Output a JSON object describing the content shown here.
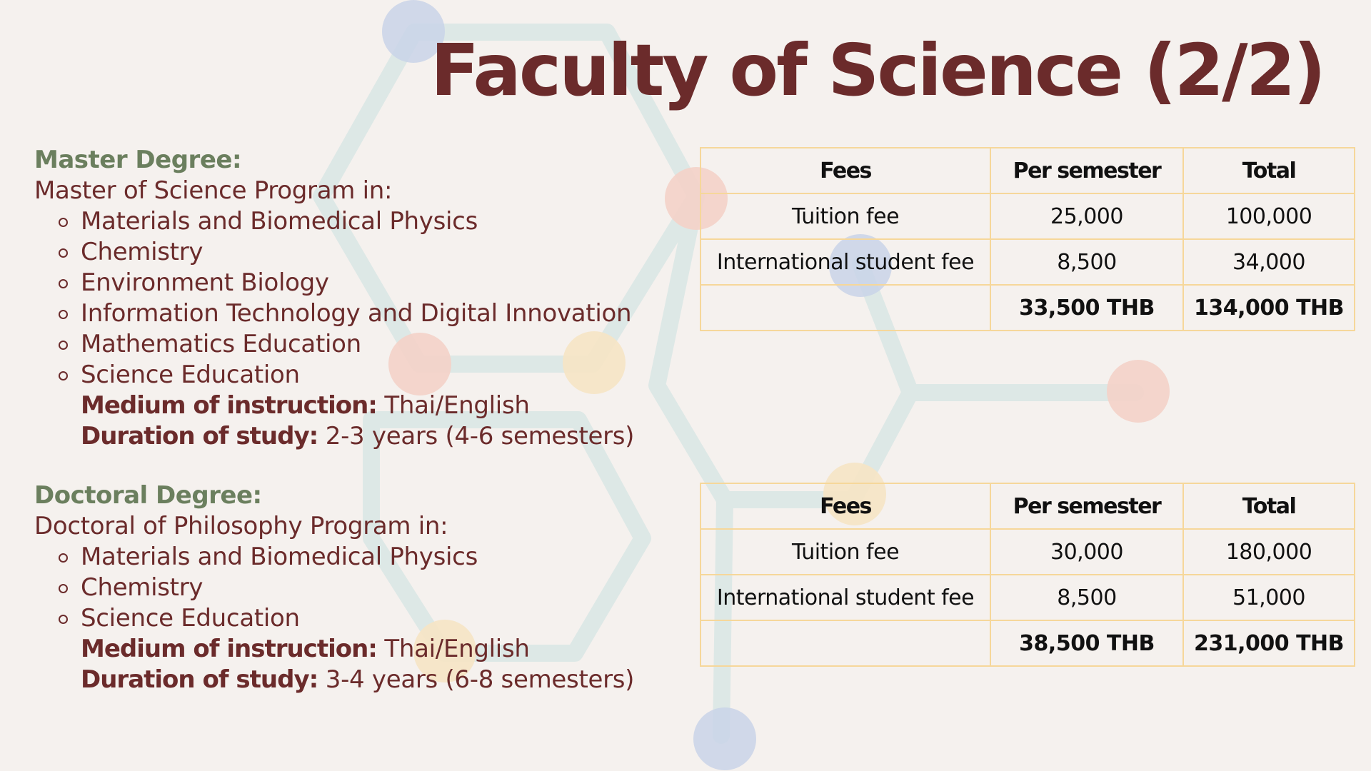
{
  "title": "Faculty of Science (2/2)",
  "master": {
    "heading": "Master Degree:",
    "intro": "Master of Science Program in:",
    "programs": [
      "Materials and Biomedical Physics",
      "Chemistry",
      "Environment Biology",
      "Information Technology and Digital Innovation",
      "Mathematics Education",
      "Science Education"
    ],
    "medium_label": "Medium of instruction:",
    "medium_value": " Thai/English",
    "duration_label": "Duration of study:",
    "duration_value": " 2-3 years (4-6 semesters)"
  },
  "doctoral": {
    "heading": "Doctoral Degree:",
    "intro": "Doctoral of Philosophy Program in:",
    "programs": [
      "Materials and Biomedical Physics",
      "Chemistry",
      "Science Education"
    ],
    "medium_label": "Medium of instruction:",
    "medium_value": " Thai/English",
    "duration_label": "Duration of study:",
    "duration_value": " 3-4 years (6-8 semesters)"
  },
  "master_fees": {
    "headers": [
      "Fees",
      "Per semester",
      "Total"
    ],
    "rows": [
      [
        "Tuition fee",
        "25,000",
        "100,000"
      ],
      [
        "International student fee",
        "8,500",
        "34,000"
      ]
    ],
    "totals": [
      "",
      "33,500 THB",
      "134,000 THB"
    ]
  },
  "doctoral_fees": {
    "headers": [
      "Fees",
      "Per semester",
      "Total"
    ],
    "rows": [
      [
        "Tuition fee",
        "30,000",
        "180,000"
      ],
      [
        "International student fee",
        "8,500",
        "51,000"
      ]
    ],
    "totals": [
      "",
      "38,500 THB",
      "231,000 THB"
    ]
  },
  "colors": {
    "title": "#6b2b2b",
    "degree_heading": "#6b7f5e",
    "table_border": "#f6d79a",
    "background": "#f5f1ee",
    "hex_line": "#dde8e6",
    "node_blue": "#c9d4e8",
    "node_pink": "#f4d2c8",
    "node_yellow": "#f6e4c4"
  }
}
